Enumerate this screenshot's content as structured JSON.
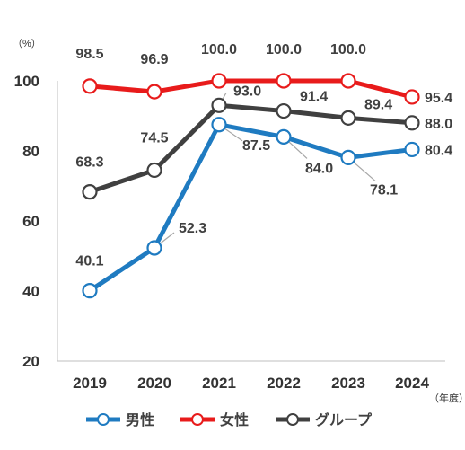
{
  "chart_data": {
    "type": "line",
    "x": [
      "2019",
      "2020",
      "2021",
      "2022",
      "2023",
      "2024"
    ],
    "y_unit": "（%）",
    "x_unit": "（年度）",
    "ylim": [
      20,
      100
    ],
    "yticks": [
      20,
      40,
      60,
      80,
      100
    ],
    "grid": false,
    "legend_position": "bottom",
    "series": [
      {
        "name": "男性",
        "color": "#1f7bc1",
        "values": [
          40.1,
          52.3,
          87.5,
          84.0,
          78.1,
          80.4
        ],
        "labels": [
          "40.1",
          "52.3",
          "87.5",
          "84.0",
          "78.1",
          "80.4"
        ]
      },
      {
        "name": "女性",
        "color": "#e81b1b",
        "values": [
          98.5,
          96.9,
          100.0,
          100.0,
          100.0,
          95.4
        ],
        "labels": [
          "98.5",
          "96.9",
          "100.0",
          "100.0",
          "100.0",
          "95.4"
        ]
      },
      {
        "name": "グループ",
        "color": "#404040",
        "values": [
          68.3,
          74.5,
          93.0,
          91.4,
          89.4,
          88.0
        ],
        "labels": [
          "68.3",
          "74.5",
          "93.0",
          "91.4",
          "89.4",
          "88.0"
        ]
      }
    ]
  }
}
